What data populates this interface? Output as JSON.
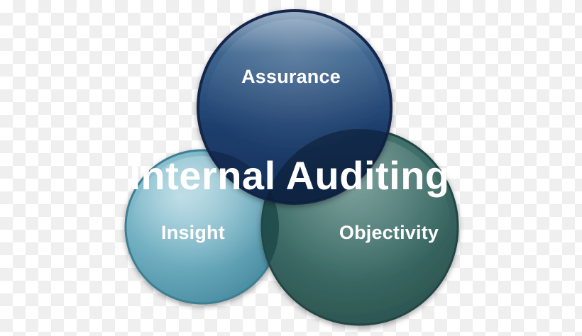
{
  "diagram": {
    "center_label": "Internal Auditing",
    "circles": [
      {
        "label": "Assurance",
        "color": "#1f3d6c"
      },
      {
        "label": "Insight",
        "color": "#6aa9bb"
      },
      {
        "label": "Objectivity",
        "color": "#3b6a66"
      }
    ]
  }
}
